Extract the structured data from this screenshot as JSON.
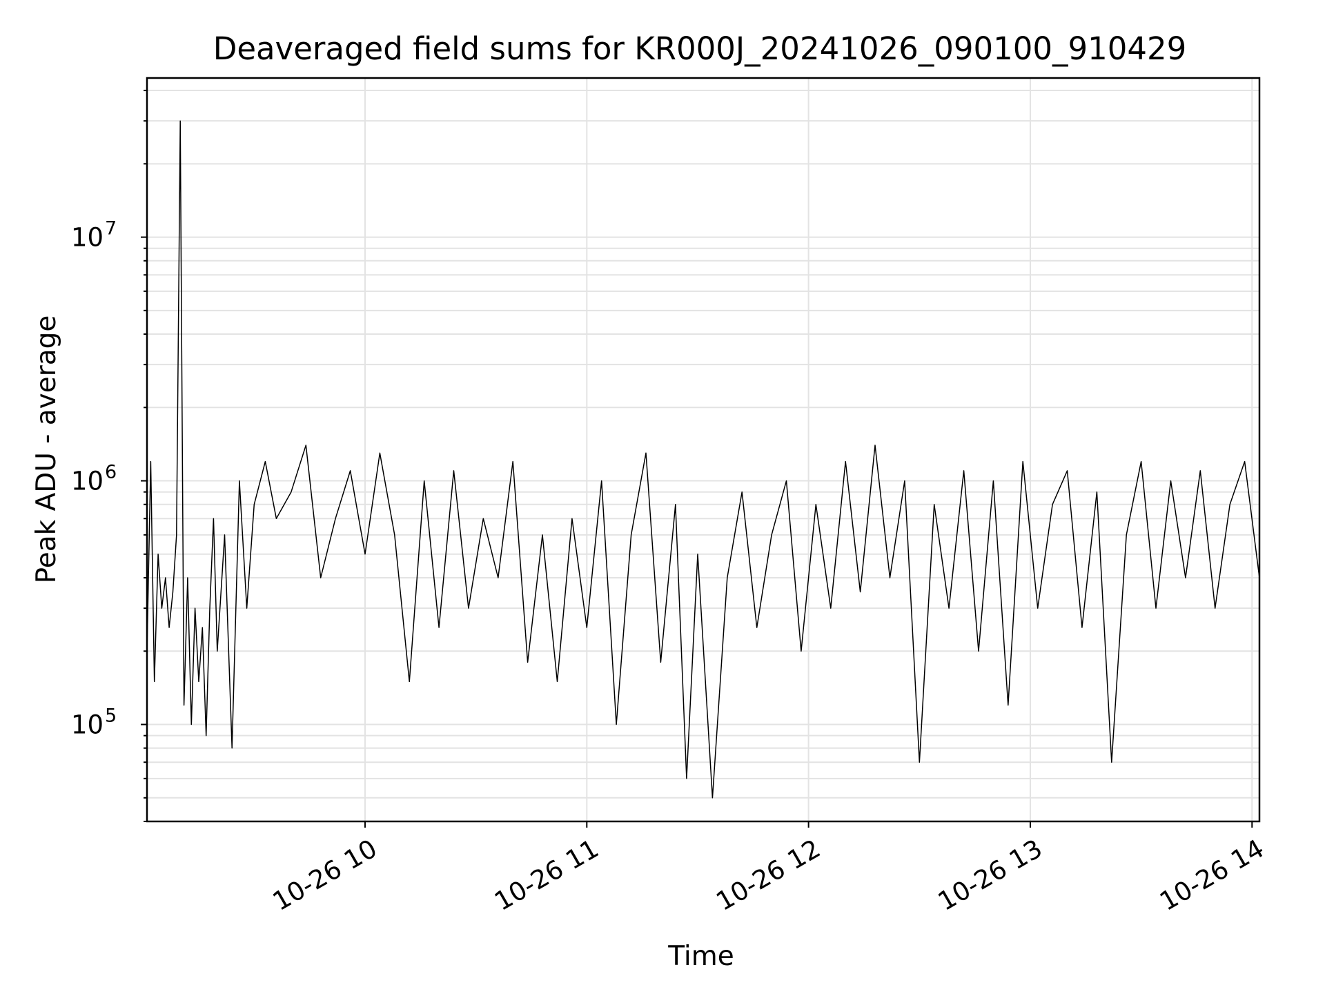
{
  "chart_data": {
    "type": "line",
    "title": "Deaveraged field sums for KR000J_20241026_090100_910429",
    "xlabel": "Time",
    "ylabel": "Peak ADU - average",
    "yscale": "log",
    "ylim": [
      40000,
      45000000
    ],
    "xlim": [
      "2024-10-26 09:01",
      "2024-10-26 14:02"
    ],
    "grid": true,
    "line_color": "#000000",
    "x_ticks": [
      {
        "time": "2024-10-26 10:00",
        "label": "10-26 10"
      },
      {
        "time": "2024-10-26 11:00",
        "label": "10-26 11"
      },
      {
        "time": "2024-10-26 12:00",
        "label": "10-26 12"
      },
      {
        "time": "2024-10-26 13:00",
        "label": "10-26 13"
      },
      {
        "time": "2024-10-26 14:00",
        "label": "10-26 14"
      }
    ],
    "y_ticks": [
      {
        "value": 100000,
        "base": "10",
        "exp": "5"
      },
      {
        "value": 1000000,
        "base": "10",
        "exp": "6"
      },
      {
        "value": 10000000,
        "base": "10",
        "exp": "7"
      }
    ],
    "series": [
      {
        "x": [
          "2024-10-26 09:01",
          "2024-10-26 09:02",
          "2024-10-26 09:03",
          "2024-10-26 09:04",
          "2024-10-26 09:05",
          "2024-10-26 09:06",
          "2024-10-26 09:07",
          "2024-10-26 09:08",
          "2024-10-26 09:09",
          "2024-10-26 09:10",
          "2024-10-26 09:11",
          "2024-10-26 09:12",
          "2024-10-26 09:13",
          "2024-10-26 09:14",
          "2024-10-26 09:15",
          "2024-10-26 09:16",
          "2024-10-26 09:17",
          "2024-10-26 09:18",
          "2024-10-26 09:19",
          "2024-10-26 09:20",
          "2024-10-26 09:22",
          "2024-10-26 09:24",
          "2024-10-26 09:26",
          "2024-10-26 09:28",
          "2024-10-26 09:30",
          "2024-10-26 09:33",
          "2024-10-26 09:36",
          "2024-10-26 09:40",
          "2024-10-26 09:44",
          "2024-10-26 09:48",
          "2024-10-26 09:52",
          "2024-10-26 09:56",
          "2024-10-26 10:00",
          "2024-10-26 10:04",
          "2024-10-26 10:08",
          "2024-10-26 10:12",
          "2024-10-26 10:16",
          "2024-10-26 10:20",
          "2024-10-26 10:24",
          "2024-10-26 10:28",
          "2024-10-26 10:32",
          "2024-10-26 10:36",
          "2024-10-26 10:40",
          "2024-10-26 10:44",
          "2024-10-26 10:48",
          "2024-10-26 10:52",
          "2024-10-26 10:56",
          "2024-10-26 11:00",
          "2024-10-26 11:04",
          "2024-10-26 11:08",
          "2024-10-26 11:12",
          "2024-10-26 11:16",
          "2024-10-26 11:20",
          "2024-10-26 11:24",
          "2024-10-26 11:27",
          "2024-10-26 11:30",
          "2024-10-26 11:34",
          "2024-10-26 11:38",
          "2024-10-26 11:42",
          "2024-10-26 11:46",
          "2024-10-26 11:50",
          "2024-10-26 11:54",
          "2024-10-26 11:58",
          "2024-10-26 12:02",
          "2024-10-26 12:06",
          "2024-10-26 12:10",
          "2024-10-26 12:14",
          "2024-10-26 12:18",
          "2024-10-26 12:22",
          "2024-10-26 12:26",
          "2024-10-26 12:30",
          "2024-10-26 12:34",
          "2024-10-26 12:38",
          "2024-10-26 12:42",
          "2024-10-26 12:46",
          "2024-10-26 12:50",
          "2024-10-26 12:54",
          "2024-10-26 12:58",
          "2024-10-26 13:02",
          "2024-10-26 13:06",
          "2024-10-26 13:10",
          "2024-10-26 13:14",
          "2024-10-26 13:18",
          "2024-10-26 13:22",
          "2024-10-26 13:26",
          "2024-10-26 13:30",
          "2024-10-26 13:34",
          "2024-10-26 13:38",
          "2024-10-26 13:42",
          "2024-10-26 13:46",
          "2024-10-26 13:50",
          "2024-10-26 13:54",
          "2024-10-26 13:58",
          "2024-10-26 14:02"
        ],
        "y": [
          200000,
          1200000,
          150000,
          500000,
          300000,
          400000,
          250000,
          350000,
          600000,
          30000000,
          120000,
          400000,
          100000,
          300000,
          150000,
          250000,
          90000,
          300000,
          700000,
          200000,
          600000,
          80000,
          1000000,
          300000,
          800000,
          1200000,
          700000,
          900000,
          1400000,
          400000,
          700000,
          1100000,
          500000,
          1300000,
          600000,
          150000,
          1000000,
          250000,
          1100000,
          300000,
          700000,
          400000,
          1200000,
          180000,
          600000,
          150000,
          700000,
          250000,
          1000000,
          100000,
          600000,
          1300000,
          180000,
          800000,
          60000,
          500000,
          50000,
          400000,
          900000,
          250000,
          600000,
          1000000,
          200000,
          800000,
          300000,
          1200000,
          350000,
          1400000,
          400000,
          1000000,
          70000,
          800000,
          300000,
          1100000,
          200000,
          1000000,
          120000,
          1200000,
          300000,
          800000,
          1100000,
          250000,
          900000,
          70000,
          600000,
          1200000,
          300000,
          1000000,
          400000,
          1100000,
          300000,
          800000,
          1200000,
          400000
        ]
      }
    ]
  }
}
